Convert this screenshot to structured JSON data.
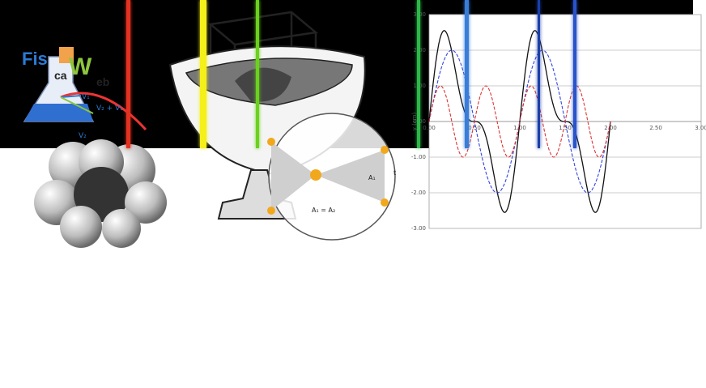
{
  "logo": {
    "letters_fis": "Fis",
    "letter_i": "i",
    "letters_ca": "ca",
    "letter_w": "W",
    "letters_eb": "eb",
    "v1": "V₁",
    "v2_plus_v1": "V₂ + V₁",
    "v2": "V₂"
  },
  "kepler": {
    "area_label_1": "A₁",
    "area_equality": "A₁ = A₂",
    "t_label": "t"
  },
  "chart_data": {
    "type": "line",
    "ylabel": "y (cm)",
    "ylim": [
      -3,
      3
    ],
    "xlim": [
      0,
      3
    ],
    "y_ticks": [
      "3.00",
      "2.00",
      "1.00",
      "0.00",
      "-1.00",
      "-2.00",
      "-3.00"
    ],
    "x_ticks": [
      "0.00",
      "0.50",
      "1.00",
      "1.50",
      "2.00",
      "2.50",
      "3.00"
    ],
    "x_tick_values": [
      0,
      0.5,
      1,
      1.5,
      2,
      2.5,
      3
    ],
    "grid": true,
    "series": [
      {
        "style": "solid",
        "color": "#111111",
        "amplitude": 2.6,
        "period": 1,
        "phase": 0
      },
      {
        "style": "dashed",
        "color": "#3344dd",
        "amplitude": 2.0,
        "period": 1,
        "phase": 0
      },
      {
        "style": "dashed",
        "color": "#dd3333",
        "amplitude": 1.0,
        "period": 0.5,
        "phase": 0
      }
    ],
    "x_end": 2.0
  },
  "spectrum": {
    "background": "#000000",
    "lines": [
      {
        "color": "#e33222",
        "pos": 0.185,
        "width": 5
      },
      {
        "color": "#f5ef1a",
        "pos": 0.293,
        "width": 8
      },
      {
        "color": "#6bd11e",
        "pos": 0.372,
        "width": 4
      },
      {
        "color": "#2fb84a",
        "pos": 0.604,
        "width": 4
      },
      {
        "color": "#3a7dd8",
        "pos": 0.673,
        "width": 5
      },
      {
        "color": "#1b3fa8",
        "pos": 0.778,
        "width": 3
      },
      {
        "color": "#2a52c9",
        "pos": 0.829,
        "width": 4
      }
    ]
  }
}
